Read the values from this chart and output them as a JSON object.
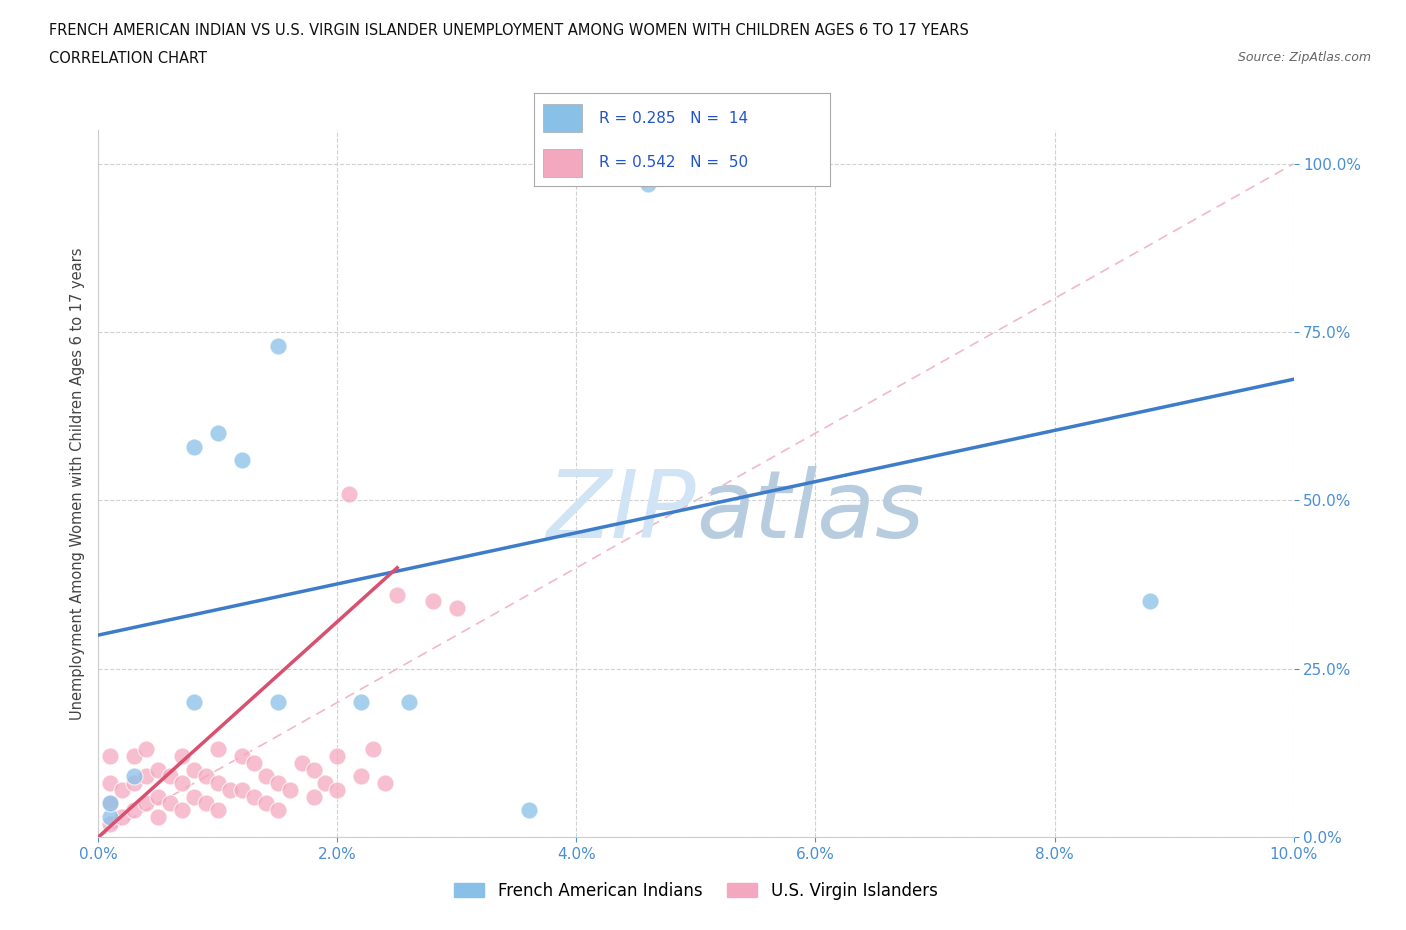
{
  "title_line1": "FRENCH AMERICAN INDIAN VS U.S. VIRGIN ISLANDER UNEMPLOYMENT AMONG WOMEN WITH CHILDREN AGES 6 TO 17 YEARS",
  "title_line2": "CORRELATION CHART",
  "source_text": "Source: ZipAtlas.com",
  "ylabel": "Unemployment Among Women with Children Ages 6 to 17 years",
  "xlim": [
    0.0,
    0.1
  ],
  "ylim": [
    0.0,
    1.05
  ],
  "xtick_vals": [
    0.0,
    0.02,
    0.04,
    0.06,
    0.08,
    0.1
  ],
  "ytick_vals": [
    0.0,
    0.25,
    0.5,
    0.75,
    1.0
  ],
  "blue_color": "#88c0e8",
  "pink_color": "#f4a8c0",
  "blue_line_color": "#3d7cc9",
  "pink_line_color": "#d94f6e",
  "diag_color": "#f0b8c8",
  "watermark_color": "#d0e4f5",
  "legend_r1": "R = 0.285",
  "legend_n1": "N = 14",
  "legend_r2": "R = 0.542",
  "legend_n2": "N = 50",
  "blue_scatter_x": [
    0.001,
    0.001,
    0.003,
    0.008,
    0.008,
    0.01,
    0.012,
    0.015,
    0.015,
    0.022,
    0.026,
    0.036,
    0.046,
    0.088
  ],
  "blue_scatter_y": [
    0.03,
    0.05,
    0.09,
    0.58,
    0.2,
    0.6,
    0.56,
    0.73,
    0.2,
    0.2,
    0.2,
    0.04,
    0.97,
    0.35
  ],
  "pink_scatter_x": [
    0.001,
    0.001,
    0.001,
    0.001,
    0.002,
    0.002,
    0.003,
    0.003,
    0.003,
    0.004,
    0.004,
    0.004,
    0.005,
    0.005,
    0.005,
    0.006,
    0.006,
    0.007,
    0.007,
    0.007,
    0.008,
    0.008,
    0.009,
    0.009,
    0.01,
    0.01,
    0.01,
    0.011,
    0.012,
    0.012,
    0.013,
    0.013,
    0.014,
    0.014,
    0.015,
    0.015,
    0.016,
    0.017,
    0.018,
    0.018,
    0.019,
    0.02,
    0.02,
    0.021,
    0.022,
    0.023,
    0.024,
    0.025,
    0.028,
    0.03
  ],
  "pink_scatter_y": [
    0.02,
    0.05,
    0.08,
    0.12,
    0.03,
    0.07,
    0.04,
    0.08,
    0.12,
    0.05,
    0.09,
    0.13,
    0.03,
    0.06,
    0.1,
    0.05,
    0.09,
    0.04,
    0.08,
    0.12,
    0.06,
    0.1,
    0.05,
    0.09,
    0.04,
    0.08,
    0.13,
    0.07,
    0.07,
    0.12,
    0.06,
    0.11,
    0.05,
    0.09,
    0.04,
    0.08,
    0.07,
    0.11,
    0.06,
    0.1,
    0.08,
    0.07,
    0.12,
    0.51,
    0.09,
    0.13,
    0.08,
    0.36,
    0.35,
    0.34
  ],
  "blue_trend_x": [
    0.0,
    0.1
  ],
  "blue_trend_y": [
    0.3,
    0.68
  ],
  "pink_trend_x": [
    0.0,
    0.025
  ],
  "pink_trend_y": [
    0.0,
    0.4
  ]
}
